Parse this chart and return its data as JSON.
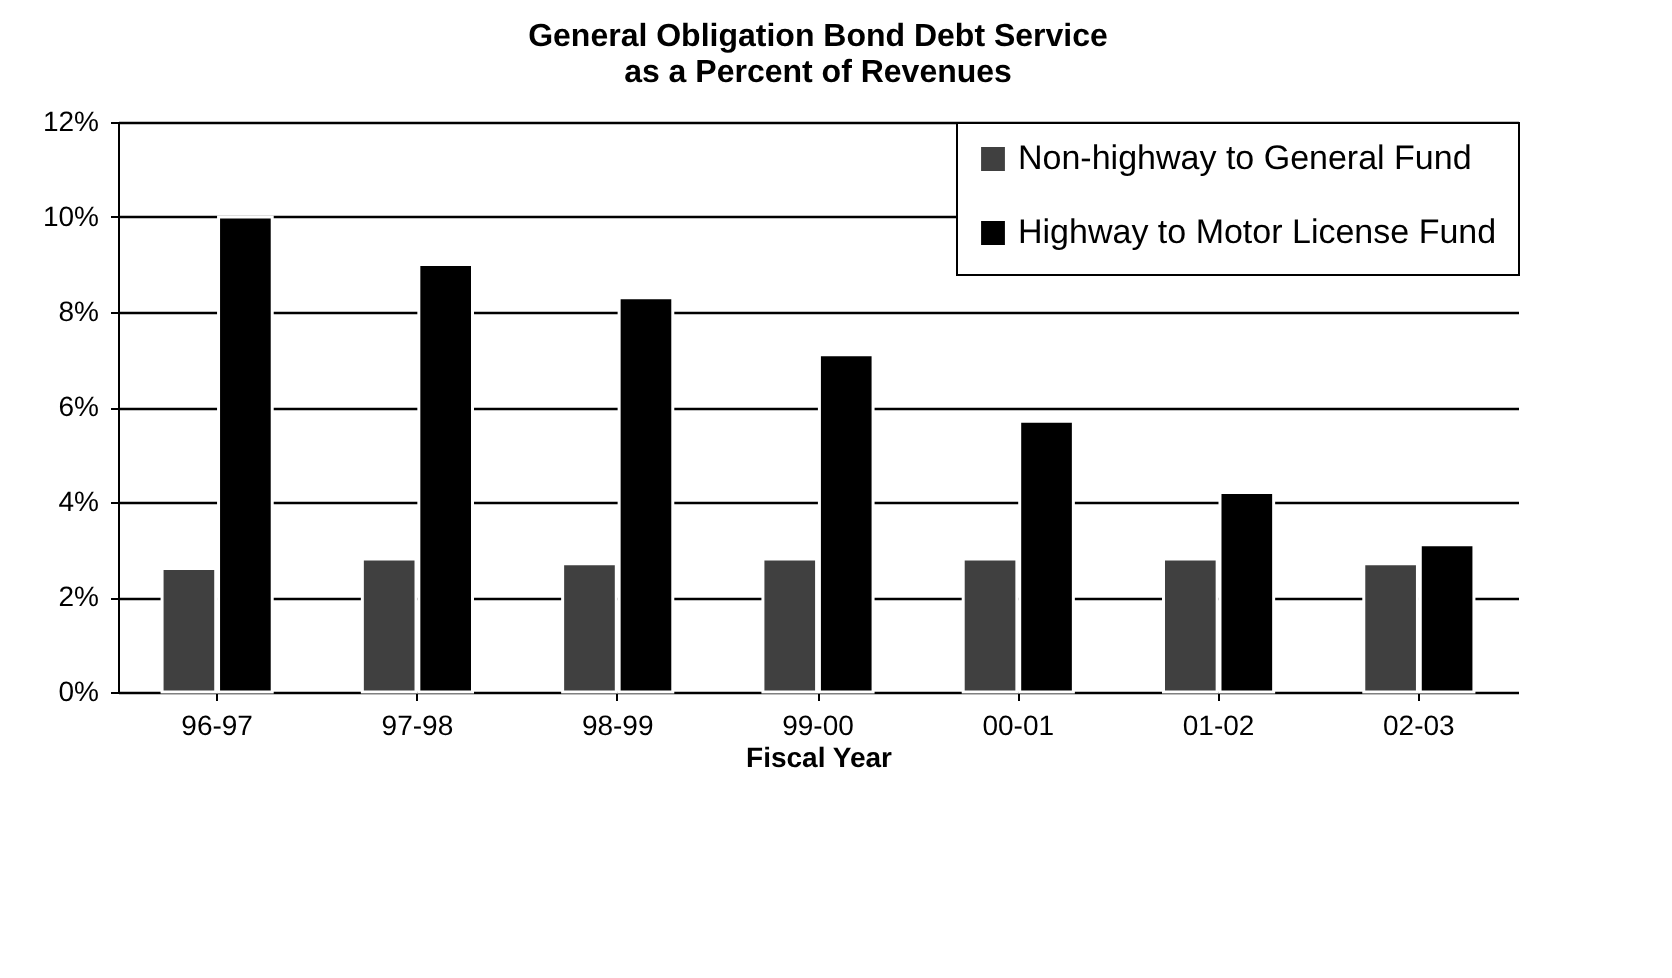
{
  "chart_data": {
    "type": "bar",
    "title": "General Obligation Bond Debt Service\nas a Percent of Revenues",
    "xlabel": "Fiscal Year",
    "categories": [
      "96-97",
      "97-98",
      "98-99",
      "99-00",
      "00-01",
      "01-02",
      "02-03"
    ],
    "series": [
      {
        "name": "Non-highway to General Fund",
        "color": "#404040",
        "values": [
          2.6,
          2.8,
          2.7,
          2.8,
          2.8,
          2.8,
          2.7
        ]
      },
      {
        "name": "Highway to Motor License Fund",
        "color": "#000000",
        "values": [
          10.0,
          9.0,
          8.3,
          7.1,
          5.7,
          4.2,
          3.1
        ]
      }
    ],
    "ylim": [
      0,
      12
    ],
    "yticks": [
      {
        "value": 0,
        "label": "0%"
      },
      {
        "value": 2,
        "label": "2%"
      },
      {
        "value": 4,
        "label": "4%"
      },
      {
        "value": 6,
        "label": "6%"
      },
      {
        "value": 8,
        "label": "8%"
      },
      {
        "value": 10,
        "label": "10%"
      },
      {
        "value": 12,
        "label": "12%"
      }
    ],
    "grid": "y",
    "legend": "top right"
  }
}
